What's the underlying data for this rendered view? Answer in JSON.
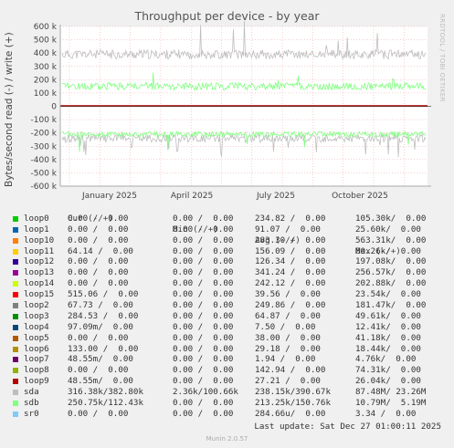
{
  "watermark": "RRDTOOL / TOBI OETIKER",
  "footer": {
    "last_update": "Last update: Sat Dec 27 01:00:11 2025",
    "munin": "Munin 2.0.57"
  },
  "legend_header": {
    "cur": "Cur (-/+)",
    "min": "Min (-/+)",
    "avg": "Avg (-/+)",
    "max": "Max (-/+)"
  },
  "legend": [
    {
      "name": "loop0",
      "color": "#00cc00",
      "cur": "0.00 /  0.00",
      "min": "0.00 /  0.00",
      "avg": "234.82 /  0.00",
      "max": "105.30k/  0.00"
    },
    {
      "name": "loop1",
      "color": "#0066b3",
      "cur": "0.00 /  0.00",
      "min": "0.00 /  0.00",
      "avg": "91.07 /  0.00",
      "max": "25.60k/  0.00"
    },
    {
      "name": "loop10",
      "color": "#ff8000",
      "cur": "0.00 /  0.00",
      "min": "0.00 /  0.00",
      "avg": "283.30 /  0.00",
      "max": "563.31k/  0.00"
    },
    {
      "name": "loop11",
      "color": "#ffcc00",
      "cur": "64.14 /  0.00",
      "min": "0.00 /  0.00",
      "avg": "156.09 /  0.00",
      "max": "80.26k/  0.00"
    },
    {
      "name": "loop12",
      "color": "#330099",
      "cur": "0.00 /  0.00",
      "min": "0.00 /  0.00",
      "avg": "126.34 /  0.00",
      "max": "197.08k/  0.00"
    },
    {
      "name": "loop13",
      "color": "#990099",
      "cur": "0.00 /  0.00",
      "min": "0.00 /  0.00",
      "avg": "341.24 /  0.00",
      "max": "256.57k/  0.00"
    },
    {
      "name": "loop14",
      "color": "#ccff00",
      "cur": "0.00 /  0.00",
      "min": "0.00 /  0.00",
      "avg": "242.12 /  0.00",
      "max": "202.88k/  0.00"
    },
    {
      "name": "loop15",
      "color": "#ff0000",
      "cur": "515.06 /  0.00",
      "min": "0.00 /  0.00",
      "avg": "39.56 /  0.00",
      "max": "23.54k/  0.00"
    },
    {
      "name": "loop2",
      "color": "#808080",
      "cur": "67.73 /  0.00",
      "min": "0.00 /  0.00",
      "avg": "249.86 /  0.00",
      "max": "181.47k/  0.00"
    },
    {
      "name": "loop3",
      "color": "#008f00",
      "cur": "284.53 /  0.00",
      "min": "0.00 /  0.00",
      "avg": "64.87 /  0.00",
      "max": "49.61k/  0.00"
    },
    {
      "name": "loop4",
      "color": "#00487d",
      "cur": "97.09m/  0.00",
      "min": "0.00 /  0.00",
      "avg": "7.50 /  0.00",
      "max": "12.41k/  0.00"
    },
    {
      "name": "loop5",
      "color": "#b35a00",
      "cur": "0.00 /  0.00",
      "min": "0.00 /  0.00",
      "avg": "38.00 /  0.00",
      "max": "41.18k/  0.00"
    },
    {
      "name": "loop6",
      "color": "#b38f00",
      "cur": "133.00 /  0.00",
      "min": "0.00 /  0.00",
      "avg": "29.18 /  0.00",
      "max": "18.44k/  0.00"
    },
    {
      "name": "loop7",
      "color": "#6b006b",
      "cur": "48.55m/  0.00",
      "min": "0.00 /  0.00",
      "avg": "1.94 /  0.00",
      "max": "4.76k/  0.00"
    },
    {
      "name": "loop8",
      "color": "#8fb300",
      "cur": "0.00 /  0.00",
      "min": "0.00 /  0.00",
      "avg": "142.94 /  0.00",
      "max": "74.31k/  0.00"
    },
    {
      "name": "loop9",
      "color": "#b30000",
      "cur": "48.55m/  0.00",
      "min": "0.00 /  0.00",
      "avg": "27.21 /  0.00",
      "max": "26.04k/  0.00"
    },
    {
      "name": "sda",
      "color": "#bebebe",
      "cur": "316.38k/382.80k",
      "min": "2.36k/100.66k",
      "avg": "238.15k/390.67k",
      "max": "87.48M/ 23.26M"
    },
    {
      "name": "sdb",
      "color": "#80ff80",
      "cur": "250.75k/112.43k",
      "min": "0.00 /  0.00",
      "avg": "213.25k/150.76k",
      "max": "10.79M/  5.19M"
    },
    {
      "name": "sr0",
      "color": "#80c9ff",
      "cur": "0.00 /  0.00",
      "min": "0.00 /  0.00",
      "avg": "284.66u/  0.00",
      "max": "3.34 /  0.00"
    }
  ],
  "chart_data": {
    "type": "line",
    "title": "Throughput per device - by year",
    "ylabel": "Bytes/second read (-) / write (+)",
    "ylim": [
      -600000,
      600000
    ],
    "yticks": [
      {
        "v": 600000,
        "l": "600 k"
      },
      {
        "v": 500000,
        "l": "500 k"
      },
      {
        "v": 400000,
        "l": "400 k"
      },
      {
        "v": 300000,
        "l": "300 k"
      },
      {
        "v": 200000,
        "l": "200 k"
      },
      {
        "v": 100000,
        "l": "100 k"
      },
      {
        "v": 0,
        "l": "0"
      },
      {
        "v": -100000,
        "l": "-100 k"
      },
      {
        "v": -200000,
        "l": "-200 k"
      },
      {
        "v": -300000,
        "l": "-300 k"
      },
      {
        "v": -400000,
        "l": "-400 k"
      },
      {
        "v": -500000,
        "l": "-500 k"
      },
      {
        "v": -600000,
        "l": "-600 k"
      }
    ],
    "xticks": [
      "January 2025",
      "April 2025",
      "July 2025",
      "October 2025"
    ],
    "grid": true,
    "series": [
      {
        "name": "sda",
        "color": "#bebebe",
        "write_avg": 390000,
        "read_avg": -240000
      },
      {
        "name": "sdb",
        "color": "#80ff80",
        "write_avg": 150000,
        "read_avg": -210000
      }
    ]
  }
}
